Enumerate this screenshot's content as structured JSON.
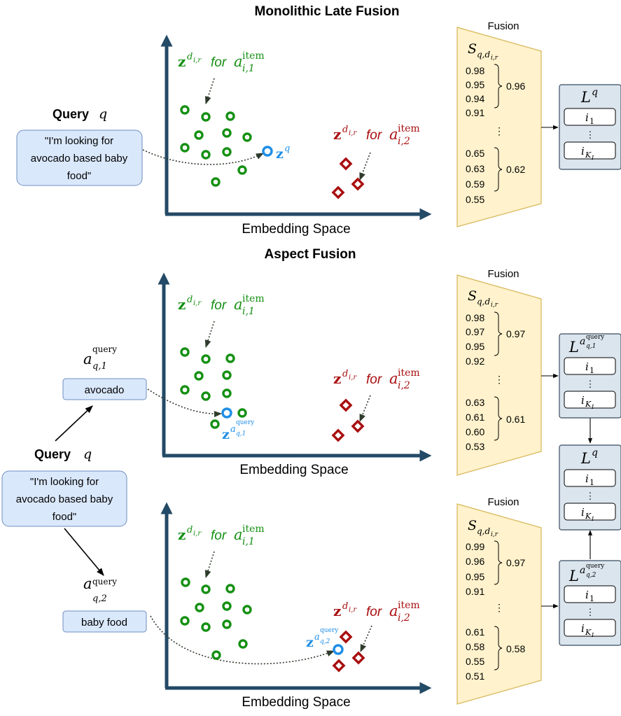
{
  "titles": {
    "late": "Monolithic Late Fusion",
    "aspect": "Aspect Fusion"
  },
  "axis_label": "Embedding Space",
  "query": {
    "label": "Query",
    "symbol": "q",
    "text_lines": [
      "\"I'm looking for",
      "avocado based baby",
      "food\""
    ]
  },
  "aspects": [
    {
      "text": "avocado",
      "symbol": "a",
      "sup": "query",
      "sub": "q,1"
    },
    {
      "text": "baby food",
      "symbol": "a",
      "sup": "query",
      "sub": "q,2"
    }
  ],
  "labels": {
    "z": "z",
    "z_sup": "d",
    "z_sup_sub": "i,r",
    "for_word": "for",
    "a_item_sup": "item",
    "a_item_sub1": "i,1",
    "a_item_sub2": "i,2",
    "zq": "z",
    "zq_sup": "q"
  },
  "fusion": {
    "title": "Fusion",
    "score_symbol": "S",
    "score_sub": "q,d",
    "score_sub_sub": "i,r",
    "dots": "⋮",
    "panels": [
      {
        "group1": [
          "0.98",
          "0.95",
          "0.94"
        ],
        "after1": "0.91",
        "agg1": "0.96",
        "group2": [
          "0.65",
          "0.63",
          "0.59"
        ],
        "after2": "0.55",
        "agg2": "0.62"
      },
      {
        "group1": [
          "0.98",
          "0.97",
          "0.95"
        ],
        "after1": "0.92",
        "agg1": "0.97",
        "group2": [
          "0.63",
          "0.61",
          "0.60"
        ],
        "after2": "0.53",
        "agg2": "0.61"
      },
      {
        "group1": [
          "0.99",
          "0.96",
          "0.95"
        ],
        "after1": "0.91",
        "agg1": "0.97",
        "group2": [
          "0.61",
          "0.58",
          "0.55"
        ],
        "after2": "0.51",
        "agg2": "0.58"
      }
    ]
  },
  "lists": {
    "L": "L",
    "Lq_sup": "q",
    "item_first": "i",
    "item_first_sub": "1",
    "item_last": "i",
    "item_last_sub": "K",
    "item_last_sub_sub": "I",
    "dots": "⋮"
  },
  "colors": {
    "green": "#159013",
    "red": "#a90e10",
    "blue": "#1e8ee6",
    "axis": "#234a66",
    "query_fill": "#dae8fc",
    "query_stroke": "#6c8ebf",
    "fusion_fill": "#fff2cc",
    "fusion_stroke": "#d6b656",
    "list_fill": "#dbe5ee",
    "list_stroke": "#384b5e"
  }
}
